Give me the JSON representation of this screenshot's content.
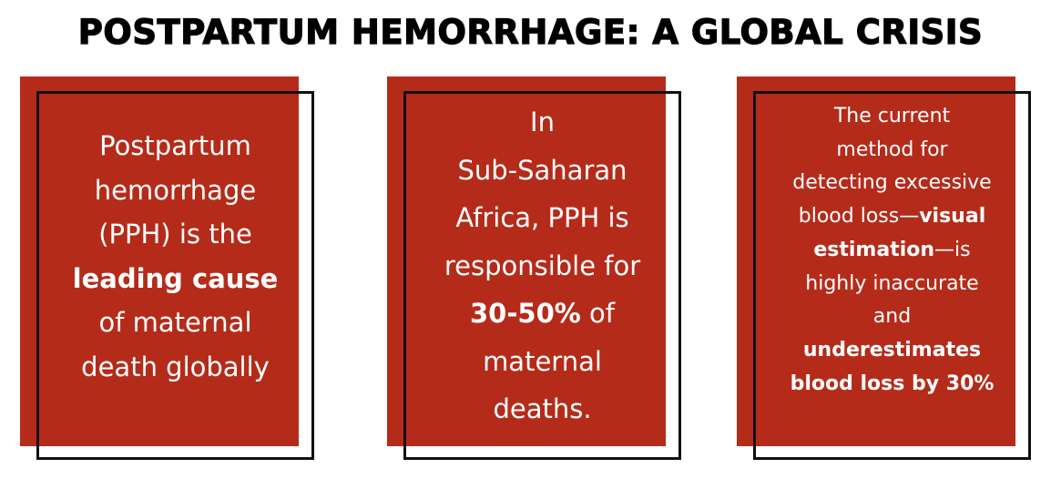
{
  "title": "POSTPARTUM HEMORRHAGE: A GLOBAL CRISIS",
  "colors": {
    "card_fill": "#b52b1a",
    "frame": "#111111",
    "text": "#ffffff",
    "title": "#000000"
  },
  "cards": [
    {
      "lines": [
        {
          "text": "Postpartum",
          "bold": false
        },
        {
          "text": "hemorrhage",
          "bold": false
        },
        {
          "text": "(PPH) is the",
          "bold": false
        },
        {
          "text": "leading cause",
          "bold": true
        },
        {
          "text": "of maternal",
          "bold": false
        },
        {
          "text": "death globally",
          "bold": false
        }
      ]
    },
    {
      "lines": [
        {
          "text": "In",
          "bold": false
        },
        {
          "text": "Sub-Saharan",
          "bold": false
        },
        {
          "text": "Africa, PPH is",
          "bold": false
        },
        {
          "text": "responsible for",
          "bold": false
        },
        {
          "bold_part": "30-50%",
          "rest": " of"
        },
        {
          "text": "maternal",
          "bold": false
        },
        {
          "text": "deaths.",
          "bold": false
        }
      ]
    },
    {
      "lines": [
        {
          "text": "The current",
          "bold": false
        },
        {
          "text": "method for",
          "bold": false
        },
        {
          "text": "detecting excessive",
          "bold": false
        },
        {
          "pre": "blood loss—",
          "bold_part": "visual"
        },
        {
          "bold_part": "estimation",
          "rest": "—is"
        },
        {
          "text": "highly inaccurate",
          "bold": false
        },
        {
          "text": "and",
          "bold": false
        },
        {
          "text": "underestimates",
          "bold": true
        },
        {
          "text": "blood loss by 30%",
          "bold": true
        }
      ]
    }
  ]
}
